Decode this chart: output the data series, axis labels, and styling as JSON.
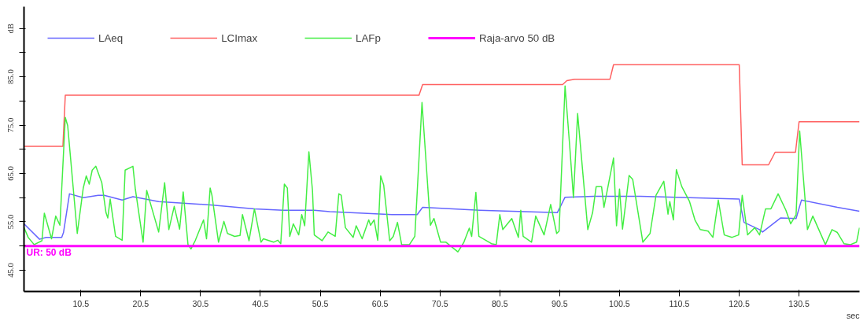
{
  "chart_data": {
    "type": "line",
    "xlabel": "sec",
    "xlim": [
      1,
      140.6
    ],
    "ylim": [
      40.6,
      99.5
    ],
    "xticks": [
      10.5,
      20.5,
      30.5,
      40.5,
      50.5,
      60.5,
      70.5,
      80.5,
      90.5,
      100.5,
      110.5,
      120.5,
      130.5
    ],
    "yticks": [
      {
        "value": 45,
        "label": "45.0"
      },
      {
        "value": 50,
        "label": null
      },
      {
        "value": 55,
        "label": "55.0"
      },
      {
        "value": 60,
        "label": null
      },
      {
        "value": 65,
        "label": "65.0"
      },
      {
        "value": 70,
        "label": null
      },
      {
        "value": 75,
        "label": "75.0"
      },
      {
        "value": 80,
        "label": null
      },
      {
        "value": 85,
        "label": "85.0"
      },
      {
        "value": 90,
        "label": null
      },
      {
        "value": 95,
        "label": "dB"
      }
    ],
    "grid": false,
    "legend": "top left",
    "marker": "none",
    "line_style": "solid",
    "annotations": [
      {
        "text": "UR: 50 dB",
        "x": 1,
        "y": 50
      }
    ],
    "series": [
      {
        "name": "LAeq",
        "color": "#6666ff",
        "x": [
          1.0,
          3.6,
          4.7,
          7.3,
          7.6,
          8.6,
          10.9,
          13.4,
          14.4,
          17.4,
          19.2,
          23.5,
          32.2,
          39.5,
          44.3,
          49.5,
          52.1,
          62.5,
          66.7,
          67.6,
          77.1,
          90.1,
          91.4,
          96.2,
          104.0,
          120.5,
          121.3,
          123.9,
          124.4,
          127.4,
          130.0,
          130.9,
          136.9,
          140.6
        ],
        "values": [
          54.6,
          51.4,
          51.8,
          51.8,
          52.8,
          60.8,
          60.0,
          60.5,
          60.5,
          59.5,
          60.2,
          59.2,
          58.5,
          57.7,
          57.4,
          57.4,
          57.1,
          56.5,
          56.5,
          58.0,
          57.4,
          56.9,
          60.1,
          60.3,
          60.3,
          59.7,
          54.9,
          53.4,
          52.9,
          55.8,
          55.7,
          59.5,
          58.0,
          57.2
        ]
      },
      {
        "name": "LCImax",
        "color": "#ff6060",
        "x": [
          1,
          7.5,
          7.9,
          67,
          67.6,
          91,
          91.7,
          93,
          98.9,
          99.5,
          120.5,
          121,
          125.4,
          126.5,
          129.9,
          130.5,
          140.6
        ],
        "values": [
          70.6,
          70.6,
          81.2,
          81.2,
          83.4,
          83.4,
          84.2,
          84.5,
          84.5,
          87.5,
          87.5,
          66.8,
          66.8,
          69.4,
          69.4,
          75.7,
          75.7
        ]
      },
      {
        "name": "LAFp",
        "color": "#44ee44",
        "x": [
          1.0,
          1.7,
          2.7,
          4.0,
          4.4,
          5.6,
          6.3,
          7.0,
          7.9,
          8.3,
          9.9,
          10.9,
          11.4,
          11.9,
          12.4,
          13.0,
          14.0,
          14.7,
          15.0,
          15.4,
          16.3,
          17.4,
          17.9,
          19.2,
          19.6,
          20.9,
          21.5,
          23.5,
          24.5,
          25.2,
          26.1,
          27.0,
          27.6,
          28.4,
          28.9,
          29.6,
          31.0,
          31.5,
          32.1,
          32.4,
          33.5,
          34.4,
          35.0,
          36.2,
          37.1,
          37.5,
          38.6,
          39.5,
          40.6,
          41.0,
          42.7,
          43.4,
          43.9,
          44.5,
          45.0,
          45.4,
          46.0,
          46.9,
          47.4,
          47.9,
          48.6,
          49.2,
          49.5,
          50.8,
          51.8,
          53.0,
          53.6,
          54.0,
          54.7,
          56.0,
          56.5,
          57.5,
          58.6,
          58.9,
          59.5,
          60.1,
          60.6,
          61.1,
          62.1,
          62.7,
          63.4,
          64.1,
          65.4,
          66.3,
          67.5,
          68.9,
          69.5,
          70.6,
          71.5,
          73.5,
          74.5,
          75.4,
          75.8,
          76.5,
          77.0,
          79.1,
          79.9,
          80.5,
          81.0,
          82.5,
          83.6,
          84.0,
          84.4,
          85.8,
          86.5,
          87.9,
          89.0,
          90.0,
          90.4,
          91.4,
          92.2,
          92.8,
          93.5,
          95.2,
          96.0,
          96.6,
          97.5,
          97.9,
          99.5,
          100.0,
          100.5,
          101.0,
          102.1,
          102.7,
          104.4,
          105.6,
          106.6,
          107.9,
          108.6,
          108.9,
          109.5,
          110.0,
          110.9,
          112.2,
          113.1,
          114.0,
          115.3,
          116.1,
          117.0,
          118.0,
          119.3,
          120.4,
          121.0,
          121.9,
          123.1,
          123.9,
          124.9,
          125.8,
          127.0,
          128.3,
          129.1,
          130.0,
          130.6,
          131.9,
          132.8,
          134.9,
          136.0,
          136.9,
          138.0,
          139.1,
          140.1,
          140.6
        ],
        "values": [
          53.8,
          51.8,
          50.3,
          51.1,
          56.8,
          51.5,
          56.2,
          54.3,
          76.6,
          74.9,
          52.6,
          62.0,
          64.5,
          62.8,
          65.7,
          66.5,
          63.1,
          56.9,
          55.8,
          59.7,
          52.0,
          51.2,
          65.7,
          66.5,
          61.8,
          50.8,
          61.5,
          52.9,
          63.1,
          53.4,
          58.2,
          53.5,
          61.2,
          50.3,
          49.4,
          51.1,
          55.4,
          51.5,
          62.0,
          60.5,
          50.8,
          55.1,
          52.6,
          52.0,
          52.2,
          56.5,
          51.1,
          57.7,
          50.8,
          51.5,
          50.8,
          51.2,
          50.5,
          62.8,
          62.0,
          52.0,
          54.6,
          52.3,
          56.5,
          54.2,
          69.5,
          61.5,
          52.3,
          51.1,
          52.9,
          52.0,
          60.8,
          60.5,
          53.8,
          51.8,
          54.2,
          51.5,
          55.4,
          54.3,
          55.4,
          51.2,
          64.5,
          62.6,
          51.1,
          52.0,
          54.9,
          50.3,
          50.3,
          52.0,
          79.7,
          54.3,
          55.7,
          50.8,
          50.8,
          48.8,
          50.8,
          53.7,
          52.0,
          61.1,
          52.0,
          50.5,
          50.3,
          56.5,
          53.4,
          55.7,
          51.8,
          57.4,
          52.0,
          50.8,
          56.2,
          52.3,
          58.6,
          52.6,
          53.1,
          83.1,
          70.3,
          60.0,
          77.4,
          53.4,
          56.9,
          62.3,
          62.3,
          58.0,
          68.2,
          54.2,
          61.8,
          53.5,
          64.6,
          63.8,
          50.8,
          52.6,
          60.5,
          63.4,
          56.6,
          59.2,
          55.4,
          65.8,
          62.3,
          59.2,
          55.4,
          53.4,
          53.1,
          51.8,
          59.5,
          52.3,
          51.8,
          52.3,
          60.5,
          52.3,
          53.8,
          52.3,
          57.7,
          57.7,
          60.8,
          57.4,
          54.6,
          56.5,
          73.8,
          53.4,
          56.2,
          50.3,
          53.4,
          52.8,
          50.5,
          50.3,
          50.8,
          53.8
        ]
      },
      {
        "name": "Raja-arvo 50 dB",
        "color": "#ff00ff",
        "x": [
          1,
          140.6
        ],
        "values": [
          50,
          50
        ]
      }
    ]
  }
}
